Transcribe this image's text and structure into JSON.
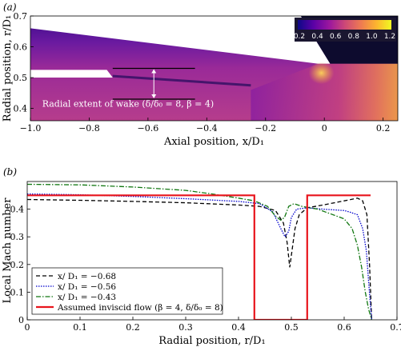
{
  "chart_data": [
    {
      "type": "heatmap",
      "panel_label": "(a)",
      "xlabel": "Axial position, x/D₁",
      "ylabel": "Radial position, r/D₁",
      "xlim": [
        -1.0,
        0.25
      ],
      "ylim": [
        0.36,
        0.7
      ],
      "xticks": [
        -1.0,
        -0.8,
        -0.6,
        -0.4,
        -0.2,
        0,
        0.2
      ],
      "xtick_labels": [
        "−1.0",
        "−0.8",
        "−0.6",
        "−0.4",
        "−0.2",
        "0",
        "0.2"
      ],
      "yticks": [
        0.4,
        0.5,
        0.6,
        0.7
      ],
      "ytick_labels": [
        "0.4",
        "0.5",
        "0.6",
        "0.7"
      ],
      "colorbar": {
        "ticks": [
          0.2,
          0.4,
          0.6,
          0.8,
          1.0,
          1.2
        ],
        "tick_labels": [
          "0.2",
          "0.4",
          "0.6",
          "0.8",
          "1.0",
          "1.2"
        ],
        "colors": [
          "#0d0887",
          "#5c01a6",
          "#9c179e",
          "#cc4778",
          "#ed7953",
          "#fdb42f",
          "#f0f921"
        ]
      },
      "annotation": {
        "text": "Radial extent of wake (δ/δ₀ = 8, β = 4)",
        "x_start": -0.72,
        "x_end": -0.44,
        "r_top": 0.53,
        "r_bottom": 0.43,
        "arrow_x": -0.58
      }
    },
    {
      "type": "line",
      "panel_label": "(b)",
      "xlabel": "Radial position, r/D₁",
      "ylabel": "Local Mach number",
      "xlim": [
        0,
        0.7
      ],
      "ylim": [
        0,
        0.5
      ],
      "xticks": [
        0,
        0.1,
        0.2,
        0.3,
        0.4,
        0.5,
        0.6,
        0.7
      ],
      "xtick_labels": [
        "0",
        "0.1",
        "0.2",
        "0.3",
        "0.4",
        "0.5",
        "0.6",
        "0.7"
      ],
      "yticks": [
        0,
        0.1,
        0.2,
        0.3,
        0.4
      ],
      "ytick_labels": [
        "0",
        "0.1",
        "0.2",
        "0.3",
        "0.4"
      ],
      "legend_position": "bottom-left",
      "series": [
        {
          "name": "x/ D₁ = −0.68",
          "color": "#000000",
          "dash": "5,3",
          "x": [
            0,
            0.1,
            0.2,
            0.3,
            0.4,
            0.44,
            0.47,
            0.485,
            0.492,
            0.497,
            0.502,
            0.507,
            0.515,
            0.53,
            0.56,
            0.6,
            0.625,
            0.635,
            0.643,
            0.648,
            0.652
          ],
          "y": [
            0.435,
            0.432,
            0.428,
            0.423,
            0.415,
            0.41,
            0.395,
            0.35,
            0.28,
            0.19,
            0.26,
            0.33,
            0.38,
            0.405,
            0.415,
            0.43,
            0.44,
            0.43,
            0.38,
            0.2,
            0
          ]
        },
        {
          "name": "x/ D₁ = −0.56",
          "color": "#0000cc",
          "dash": "1.5,1.5",
          "x": [
            0,
            0.1,
            0.2,
            0.3,
            0.4,
            0.44,
            0.465,
            0.48,
            0.488,
            0.495,
            0.5,
            0.51,
            0.53,
            0.56,
            0.6,
            0.61,
            0.625,
            0.635,
            0.642,
            0.647,
            0.652
          ],
          "y": [
            0.455,
            0.452,
            0.446,
            0.438,
            0.428,
            0.42,
            0.39,
            0.33,
            0.3,
            0.32,
            0.37,
            0.4,
            0.405,
            0.4,
            0.395,
            0.39,
            0.38,
            0.33,
            0.25,
            0.12,
            0
          ]
        },
        {
          "name": "x/ D₁ = −0.43",
          "color": "#117711",
          "dash": "6,2,1.5,2",
          "x": [
            0,
            0.1,
            0.2,
            0.3,
            0.35,
            0.4,
            0.43,
            0.455,
            0.47,
            0.48,
            0.487,
            0.495,
            0.505,
            0.52,
            0.55,
            0.6,
            0.615,
            0.625,
            0.633,
            0.64,
            0.646,
            0.652
          ],
          "y": [
            0.49,
            0.488,
            0.48,
            0.468,
            0.455,
            0.44,
            0.43,
            0.41,
            0.375,
            0.36,
            0.37,
            0.41,
            0.42,
            0.41,
            0.4,
            0.365,
            0.33,
            0.27,
            0.19,
            0.1,
            0.04,
            0
          ]
        },
        {
          "name": "Assumed inviscid flow (β = 4, δ/δ₀ = 8)",
          "color": "#e8141c",
          "dash": "",
          "x": [
            0,
            0.43,
            0.43,
            0.53,
            0.53,
            0.65
          ],
          "y": [
            0.45,
            0.45,
            0,
            0,
            0.45,
            0.45
          ]
        }
      ]
    }
  ]
}
